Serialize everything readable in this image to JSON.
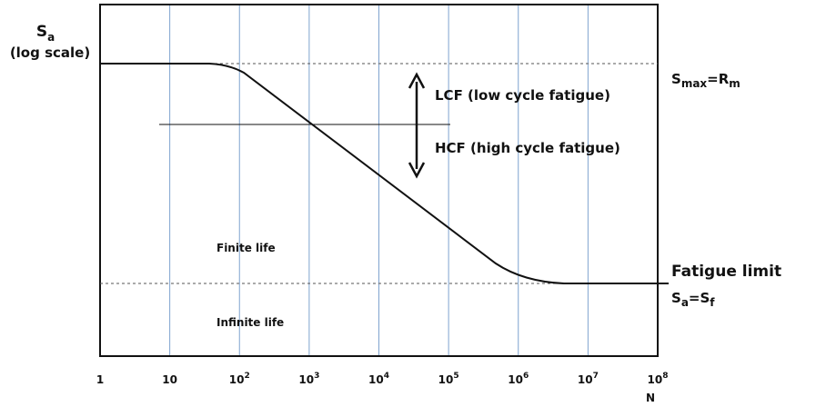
{
  "y_axis": {
    "symbol": "S",
    "sub": "a",
    "note": "(log scale)"
  },
  "x_axis": {
    "name": "N",
    "ticks": [
      {
        "base": "1"
      },
      {
        "base": "10"
      },
      {
        "base": "10",
        "exp": "2"
      },
      {
        "base": "10",
        "exp": "3"
      },
      {
        "base": "10",
        "exp": "4"
      },
      {
        "base": "10",
        "exp": "5"
      },
      {
        "base": "10",
        "exp": "6"
      },
      {
        "base": "10",
        "exp": "7"
      },
      {
        "base": "10",
        "exp": "8"
      }
    ]
  },
  "labels": {
    "smax": {
      "s1": "S",
      "sub1": "max",
      "mid": "=R",
      "sub2": "m"
    },
    "lcf": "LCF (low cycle fatigue)",
    "hcf": "HCF (high cycle fatigue)",
    "finite": "Finite life",
    "infinite": "Infinite life",
    "fatigue_limit": "Fatigue limit",
    "sf": {
      "s1": "S",
      "sub1": "a",
      "mid": "=S",
      "sub2": "f"
    }
  }
}
